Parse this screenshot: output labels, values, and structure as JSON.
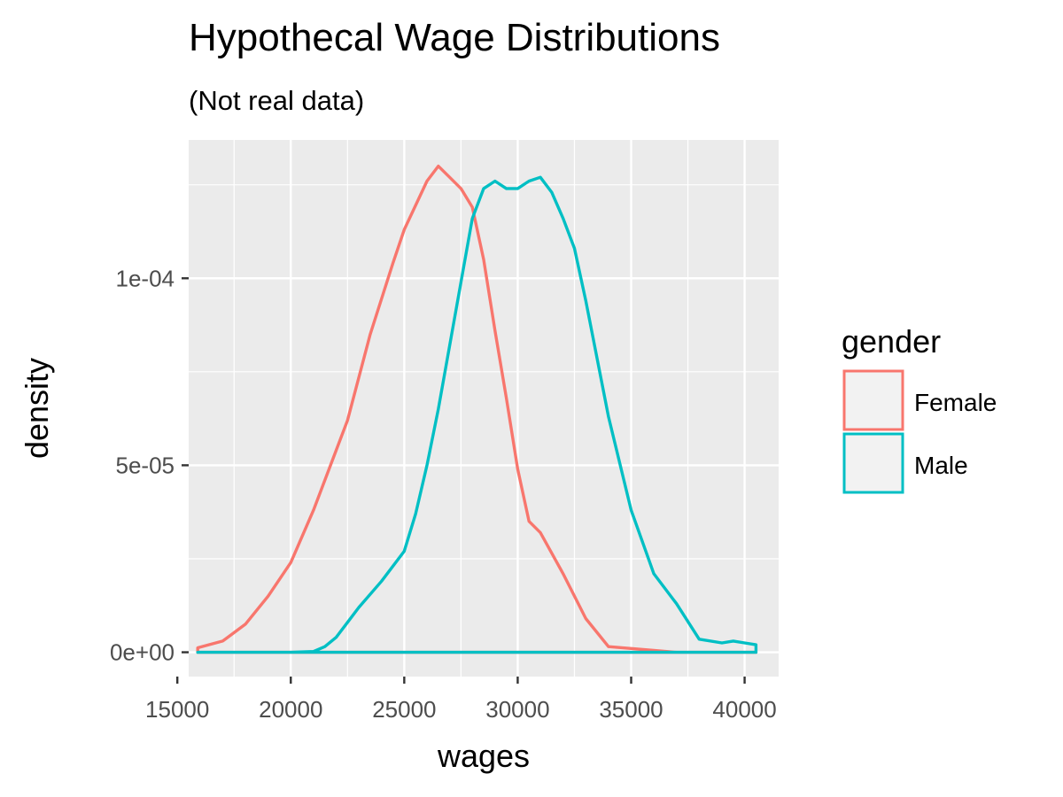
{
  "chart_data": {
    "type": "line",
    "title": "Hypothecal Wage Distributions",
    "subtitle": "(Not real data)",
    "xlabel": "wages",
    "ylabel": "density",
    "xlim": [
      15500,
      41500
    ],
    "ylim": [
      -6.5e-06,
      0.000137
    ],
    "x_ticks": [
      15000,
      20000,
      25000,
      30000,
      35000,
      40000
    ],
    "x_tick_labels": [
      "15000",
      "20000",
      "25000",
      "30000",
      "35000",
      "40000"
    ],
    "y_ticks": [
      0,
      5e-05,
      0.0001
    ],
    "y_tick_labels": [
      "0e+00",
      "5e-05",
      "1e-04"
    ],
    "grid": true,
    "legend": {
      "title": "gender",
      "placement": "right"
    },
    "series": [
      {
        "name": "Female",
        "color": "#F8766D",
        "x": [
          15900,
          17000,
          18000,
          19000,
          20000,
          21000,
          22000,
          22500,
          23500,
          24500,
          25000,
          26000,
          26500,
          27000,
          27500,
          28000,
          28500,
          29000,
          29500,
          30000,
          30500,
          31000,
          32000,
          33000,
          34000,
          35000,
          36000,
          37000,
          38000,
          39000,
          40000,
          40500
        ],
        "values": [
          1.2e-06,
          3e-06,
          7.5e-06,
          1.5e-05,
          2.4e-05,
          3.8e-05,
          5.4e-05,
          6.2e-05,
          8.5e-05,
          0.000104,
          0.000113,
          0.000126,
          0.00013,
          0.000127,
          0.000124,
          0.000119,
          0.000105,
          8.6e-05,
          6.8e-05,
          4.9e-05,
          3.5e-05,
          3.2e-05,
          2.1e-05,
          9e-06,
          1.5e-06,
          1e-06,
          5e-07,
          0,
          0,
          0,
          0,
          0
        ]
      },
      {
        "name": "Male",
        "color": "#00BFC4",
        "x": [
          15900,
          18000,
          20000,
          21000,
          21500,
          22000,
          22500,
          23000,
          24000,
          25000,
          25500,
          26000,
          26500,
          27000,
          27500,
          28000,
          28500,
          29000,
          29500,
          30000,
          30500,
          31000,
          31500,
          32000,
          32500,
          33000,
          34000,
          35000,
          36000,
          37000,
          38000,
          39000,
          39500,
          40000,
          40500
        ],
        "values": [
          0,
          0,
          0,
          2e-07,
          1.5e-06,
          4e-06,
          8e-06,
          1.2e-05,
          1.9e-05,
          2.7e-05,
          3.7e-05,
          5e-05,
          6.5e-05,
          8.2e-05,
          9.9e-05,
          0.000116,
          0.000124,
          0.000126,
          0.000124,
          0.000124,
          0.000126,
          0.000127,
          0.000123,
          0.000116,
          0.000108,
          9.4e-05,
          6.3e-05,
          3.8e-05,
          2.1e-05,
          1.3e-05,
          3.5e-06,
          2.5e-06,
          3e-06,
          2.5e-06,
          2e-06
        ]
      }
    ]
  }
}
